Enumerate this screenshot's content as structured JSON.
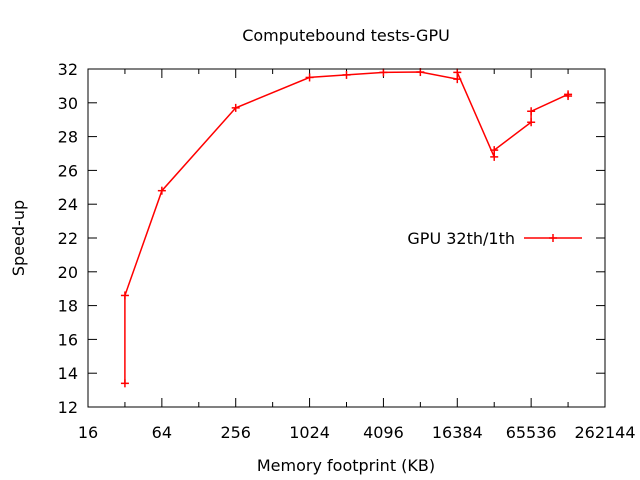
{
  "chart_data": {
    "type": "line",
    "title": "Computebound tests-GPU",
    "xlabel": "Memory footprint (KB)",
    "ylabel": "Speed-up",
    "x_scale": "log2",
    "xlim": [
      16,
      262144
    ],
    "ylim": [
      12,
      32
    ],
    "x_ticks": [
      16,
      64,
      256,
      1024,
      4096,
      16384,
      65536,
      262144
    ],
    "x_tick_labels": [
      "16",
      "64",
      "256",
      "1024",
      "4096",
      "16384",
      "65536",
      "262144"
    ],
    "y_ticks": [
      12,
      14,
      16,
      18,
      20,
      22,
      24,
      26,
      28,
      30,
      32
    ],
    "y_tick_labels": [
      "12",
      "14",
      "16",
      "18",
      "20",
      "22",
      "24",
      "26",
      "28",
      "30",
      "32"
    ],
    "grid": false,
    "legend_position": "right",
    "series": [
      {
        "name": "GPU 32th/1th",
        "color": "#ff0000",
        "marker": "plus",
        "x": [
          32,
          32,
          64,
          256,
          1024,
          2048,
          4096,
          8192,
          16384,
          16384,
          32768,
          32768,
          65536,
          65536,
          131072,
          131072
        ],
        "y": [
          13.4,
          18.6,
          24.8,
          29.7,
          31.5,
          31.65,
          31.8,
          31.82,
          31.4,
          31.8,
          26.8,
          27.2,
          28.85,
          29.5,
          30.5,
          30.4
        ]
      }
    ]
  }
}
